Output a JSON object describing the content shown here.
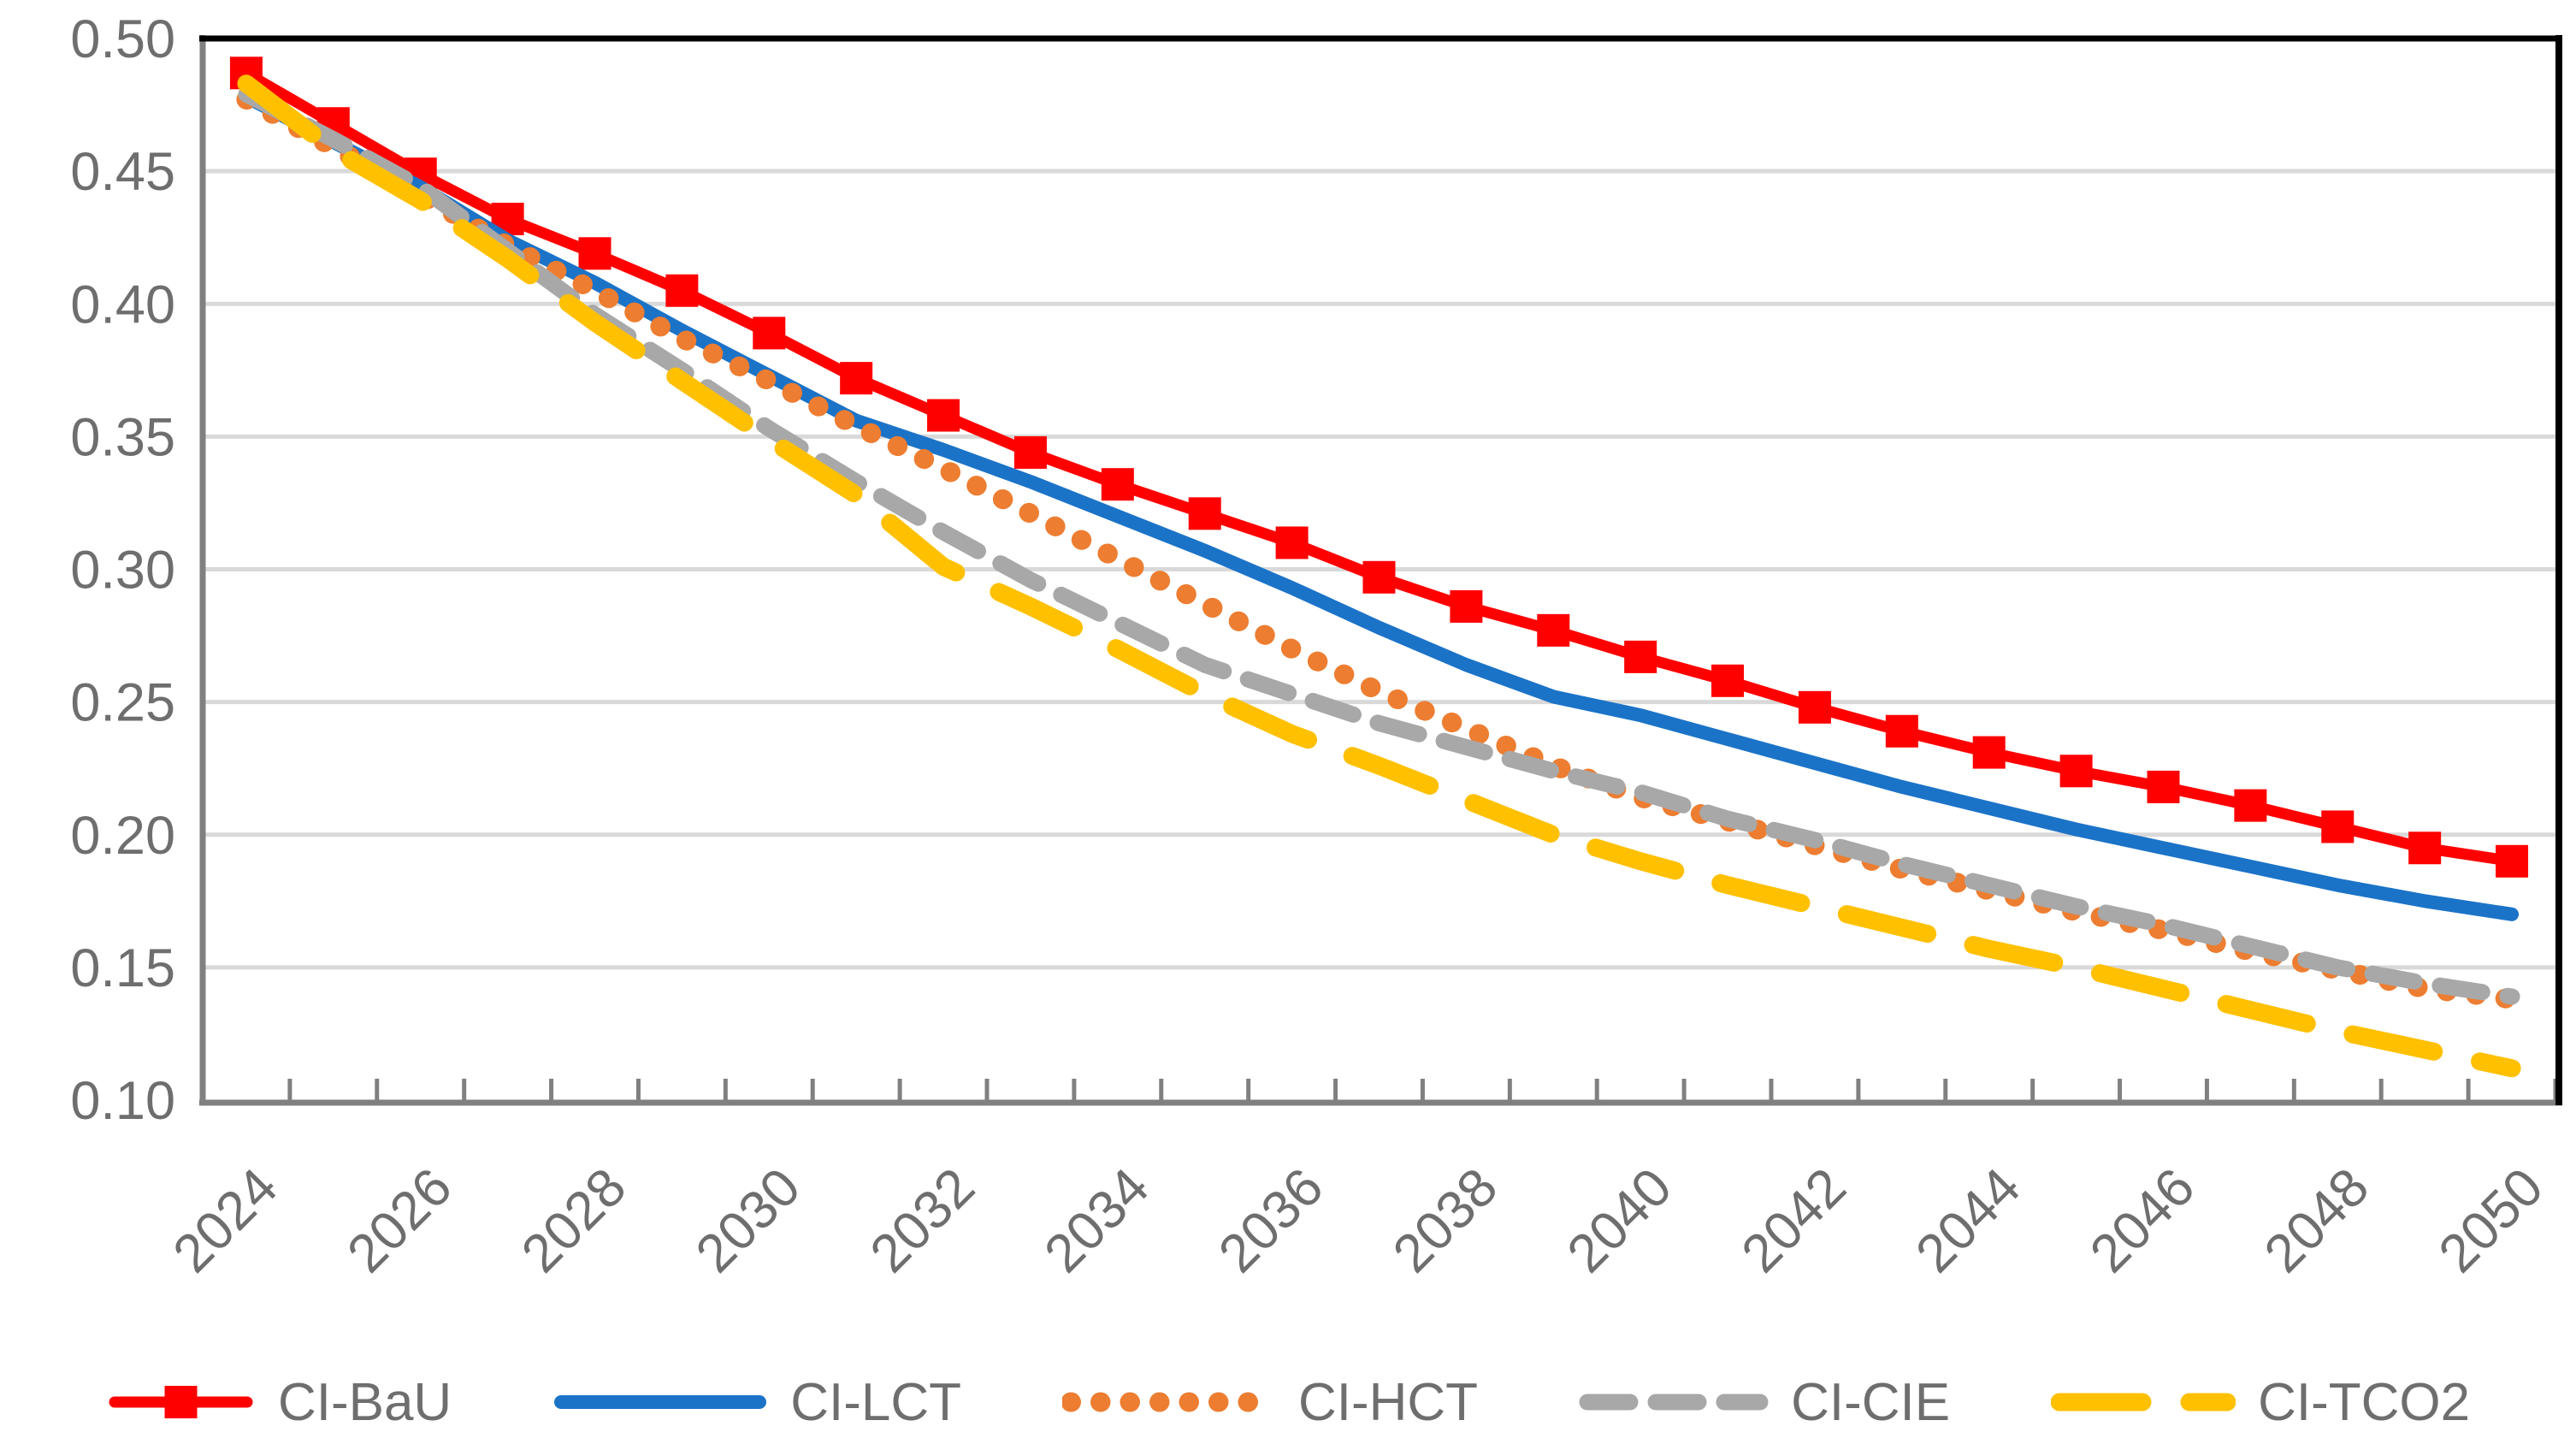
{
  "chart_data": {
    "type": "line",
    "title": "",
    "xlabel": "",
    "ylabel": "",
    "x": [
      2024,
      2025,
      2026,
      2027,
      2028,
      2029,
      2030,
      2031,
      2032,
      2033,
      2034,
      2035,
      2036,
      2037,
      2038,
      2039,
      2040,
      2041,
      2042,
      2043,
      2044,
      2045,
      2046,
      2047,
      2048,
      2049,
      2050
    ],
    "x_tick_labels": [
      "2024",
      "2026",
      "2028",
      "2030",
      "2032",
      "2034",
      "2036",
      "2038",
      "2040",
      "2042",
      "2044",
      "2046",
      "2048",
      "2050"
    ],
    "y_tick_labels": [
      "0.50",
      "0.45",
      "0.40",
      "0.35",
      "0.30",
      "0.25",
      "0.20",
      "0.15",
      "0.10"
    ],
    "ylim": [
      0.1,
      0.5
    ],
    "ytick_step": 0.05,
    "grid": true,
    "legend_position": "bottom",
    "series": [
      {
        "name": "CI-BaU",
        "color": "#FF0000",
        "line_style": "solid",
        "marker": "square",
        "values": [
          0.487,
          0.468,
          0.449,
          0.432,
          0.419,
          0.405,
          0.389,
          0.372,
          0.358,
          0.344,
          0.332,
          0.321,
          0.31,
          0.297,
          0.286,
          0.277,
          0.267,
          0.258,
          0.248,
          0.239,
          0.231,
          0.224,
          0.218,
          0.211,
          0.203,
          0.195,
          0.19
        ]
      },
      {
        "name": "CI-LCT",
        "color": "#1B73C8",
        "line_style": "solid",
        "marker": null,
        "values": [
          0.478,
          0.461,
          0.444,
          0.424,
          0.408,
          0.39,
          0.373,
          0.356,
          0.345,
          0.333,
          0.32,
          0.307,
          0.293,
          0.278,
          0.264,
          0.252,
          0.245,
          0.236,
          0.227,
          0.218,
          0.21,
          0.202,
          0.195,
          0.188,
          0.181,
          0.175,
          0.17
        ]
      },
      {
        "name": "CI-HCT",
        "color": "#ED7D31",
        "line_style": "dotted",
        "marker": null,
        "values": [
          0.477,
          0.459,
          0.441,
          0.422,
          0.405,
          0.387,
          0.371,
          0.354,
          0.338,
          0.321,
          0.304,
          0.287,
          0.27,
          0.254,
          0.24,
          0.226,
          0.214,
          0.205,
          0.196,
          0.187,
          0.179,
          0.171,
          0.164,
          0.156,
          0.149,
          0.142,
          0.138
        ]
      },
      {
        "name": "CI-CIE",
        "color": "#A8A8A8",
        "line_style": "dashed",
        "marker": null,
        "values": [
          0.479,
          0.462,
          0.444,
          0.42,
          0.396,
          0.375,
          0.353,
          0.333,
          0.314,
          0.296,
          0.28,
          0.264,
          0.253,
          0.242,
          0.233,
          0.224,
          0.216,
          0.206,
          0.198,
          0.189,
          0.181,
          0.173,
          0.166,
          0.158,
          0.15,
          0.144,
          0.139
        ]
      },
      {
        "name": "CI-TCO2",
        "color": "#FFC000",
        "line_style": "long_dash",
        "marker": null,
        "values": [
          0.483,
          0.458,
          0.439,
          0.417,
          0.393,
          0.371,
          0.349,
          0.328,
          0.301,
          0.286,
          0.27,
          0.253,
          0.238,
          0.226,
          0.213,
          0.2,
          0.19,
          0.181,
          0.173,
          0.165,
          0.157,
          0.15,
          0.142,
          0.134,
          0.126,
          0.119,
          0.112
        ]
      }
    ]
  },
  "style_colors": {
    "grid": "#D9D9D9",
    "axis": "#808080",
    "plot_border": "#000000",
    "tick_label": "#6E6E6E",
    "legend_text": "#6E6E6E",
    "background": "#FFFFFF"
  }
}
